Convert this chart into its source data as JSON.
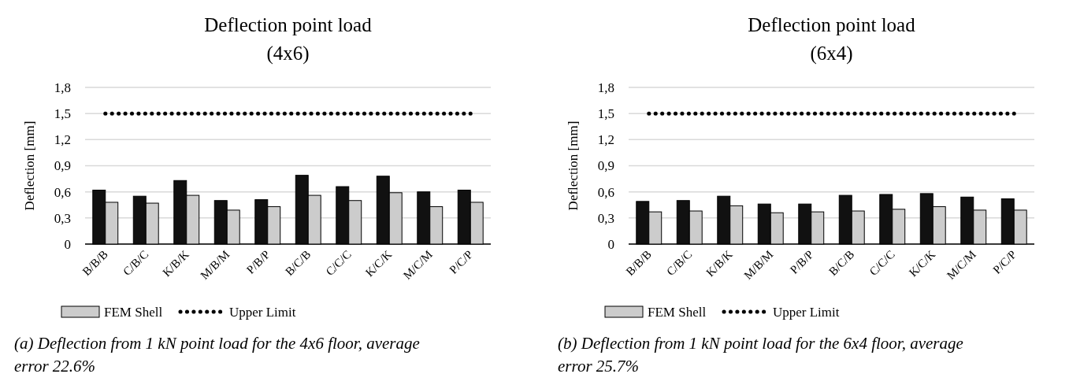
{
  "chart_data": [
    {
      "type": "bar",
      "title": "Deflection point load",
      "subtitle": "(4x6)",
      "ylabel": "Deflection [mm]",
      "categories": [
        "B/B/B",
        "C/B/C",
        "K/B/K",
        "M/B/M",
        "P/B/P",
        "B/C/B",
        "C/C/C",
        "K/C/K",
        "M/C/M",
        "P/C/P"
      ],
      "series": [
        {
          "color": "#111111",
          "values": [
            0.62,
            0.55,
            0.73,
            0.5,
            0.51,
            0.79,
            0.66,
            0.78,
            0.6,
            0.62
          ]
        },
        {
          "name": "FEM Shell",
          "color": "#cccccc",
          "values": [
            0.48,
            0.47,
            0.56,
            0.39,
            0.43,
            0.56,
            0.5,
            0.59,
            0.43,
            0.48
          ]
        },
        {
          "name": "Upper Limit",
          "type": "line",
          "color": "#000000",
          "line_style": "dotted",
          "values": [
            1.5,
            1.5,
            1.5,
            1.5,
            1.5,
            1.5,
            1.5,
            1.5,
            1.5,
            1.5
          ]
        }
      ],
      "ylim": [
        0,
        1.8
      ],
      "yticks": [
        0,
        {
          "value": 0.3,
          "label": "0,3"
        },
        {
          "value": 0.6,
          "label": "0,6"
        },
        {
          "value": 0.9,
          "label": "0,9"
        },
        {
          "value": 1.2,
          "label": "1,2"
        },
        {
          "value": 1.5,
          "label": "1,5"
        },
        {
          "value": 1.8,
          "label": "1,8"
        }
      ],
      "grid": "y",
      "legend": "bottom",
      "annotations": [
        "(a) Deflection from 1 kN point load for the 4x6 floor, average error 22.6%"
      ]
    },
    {
      "type": "bar",
      "title": "Deflection point load",
      "subtitle": "(6x4)",
      "ylabel": "Deflection [mm]",
      "categories": [
        "B/B/B",
        "C/B/C",
        "K/B/K",
        "M/B/M",
        "P/B/P",
        "B/C/B",
        "C/C/C",
        "K/C/K",
        "M/C/M",
        "P/C/P"
      ],
      "series": [
        {
          "color": "#111111",
          "values": [
            0.49,
            0.5,
            0.55,
            0.46,
            0.46,
            0.56,
            0.57,
            0.58,
            0.54,
            0.52
          ]
        },
        {
          "name": "FEM Shell",
          "color": "#cccccc",
          "values": [
            0.37,
            0.38,
            0.44,
            0.36,
            0.37,
            0.38,
            0.4,
            0.43,
            0.39,
            0.39
          ]
        },
        {
          "name": "Upper Limit",
          "type": "line",
          "color": "#000000",
          "line_style": "dotted",
          "values": [
            1.5,
            1.5,
            1.5,
            1.5,
            1.5,
            1.5,
            1.5,
            1.5,
            1.5,
            1.5
          ]
        }
      ],
      "ylim": [
        0,
        1.8
      ],
      "yticks": [
        0,
        {
          "value": 0.3,
          "label": "0,3"
        },
        {
          "value": 0.6,
          "label": "0,6"
        },
        {
          "value": 0.9,
          "label": "0,9"
        },
        {
          "value": 1.2,
          "label": "1,2"
        },
        {
          "value": 1.5,
          "label": "1,5"
        },
        {
          "value": 1.8,
          "label": "1,8"
        }
      ],
      "grid": "y",
      "legend": "bottom",
      "annotations": [
        "(b) Deflection from 1 kN point load for the 6x4 floor, average error 25.7%"
      ]
    }
  ]
}
